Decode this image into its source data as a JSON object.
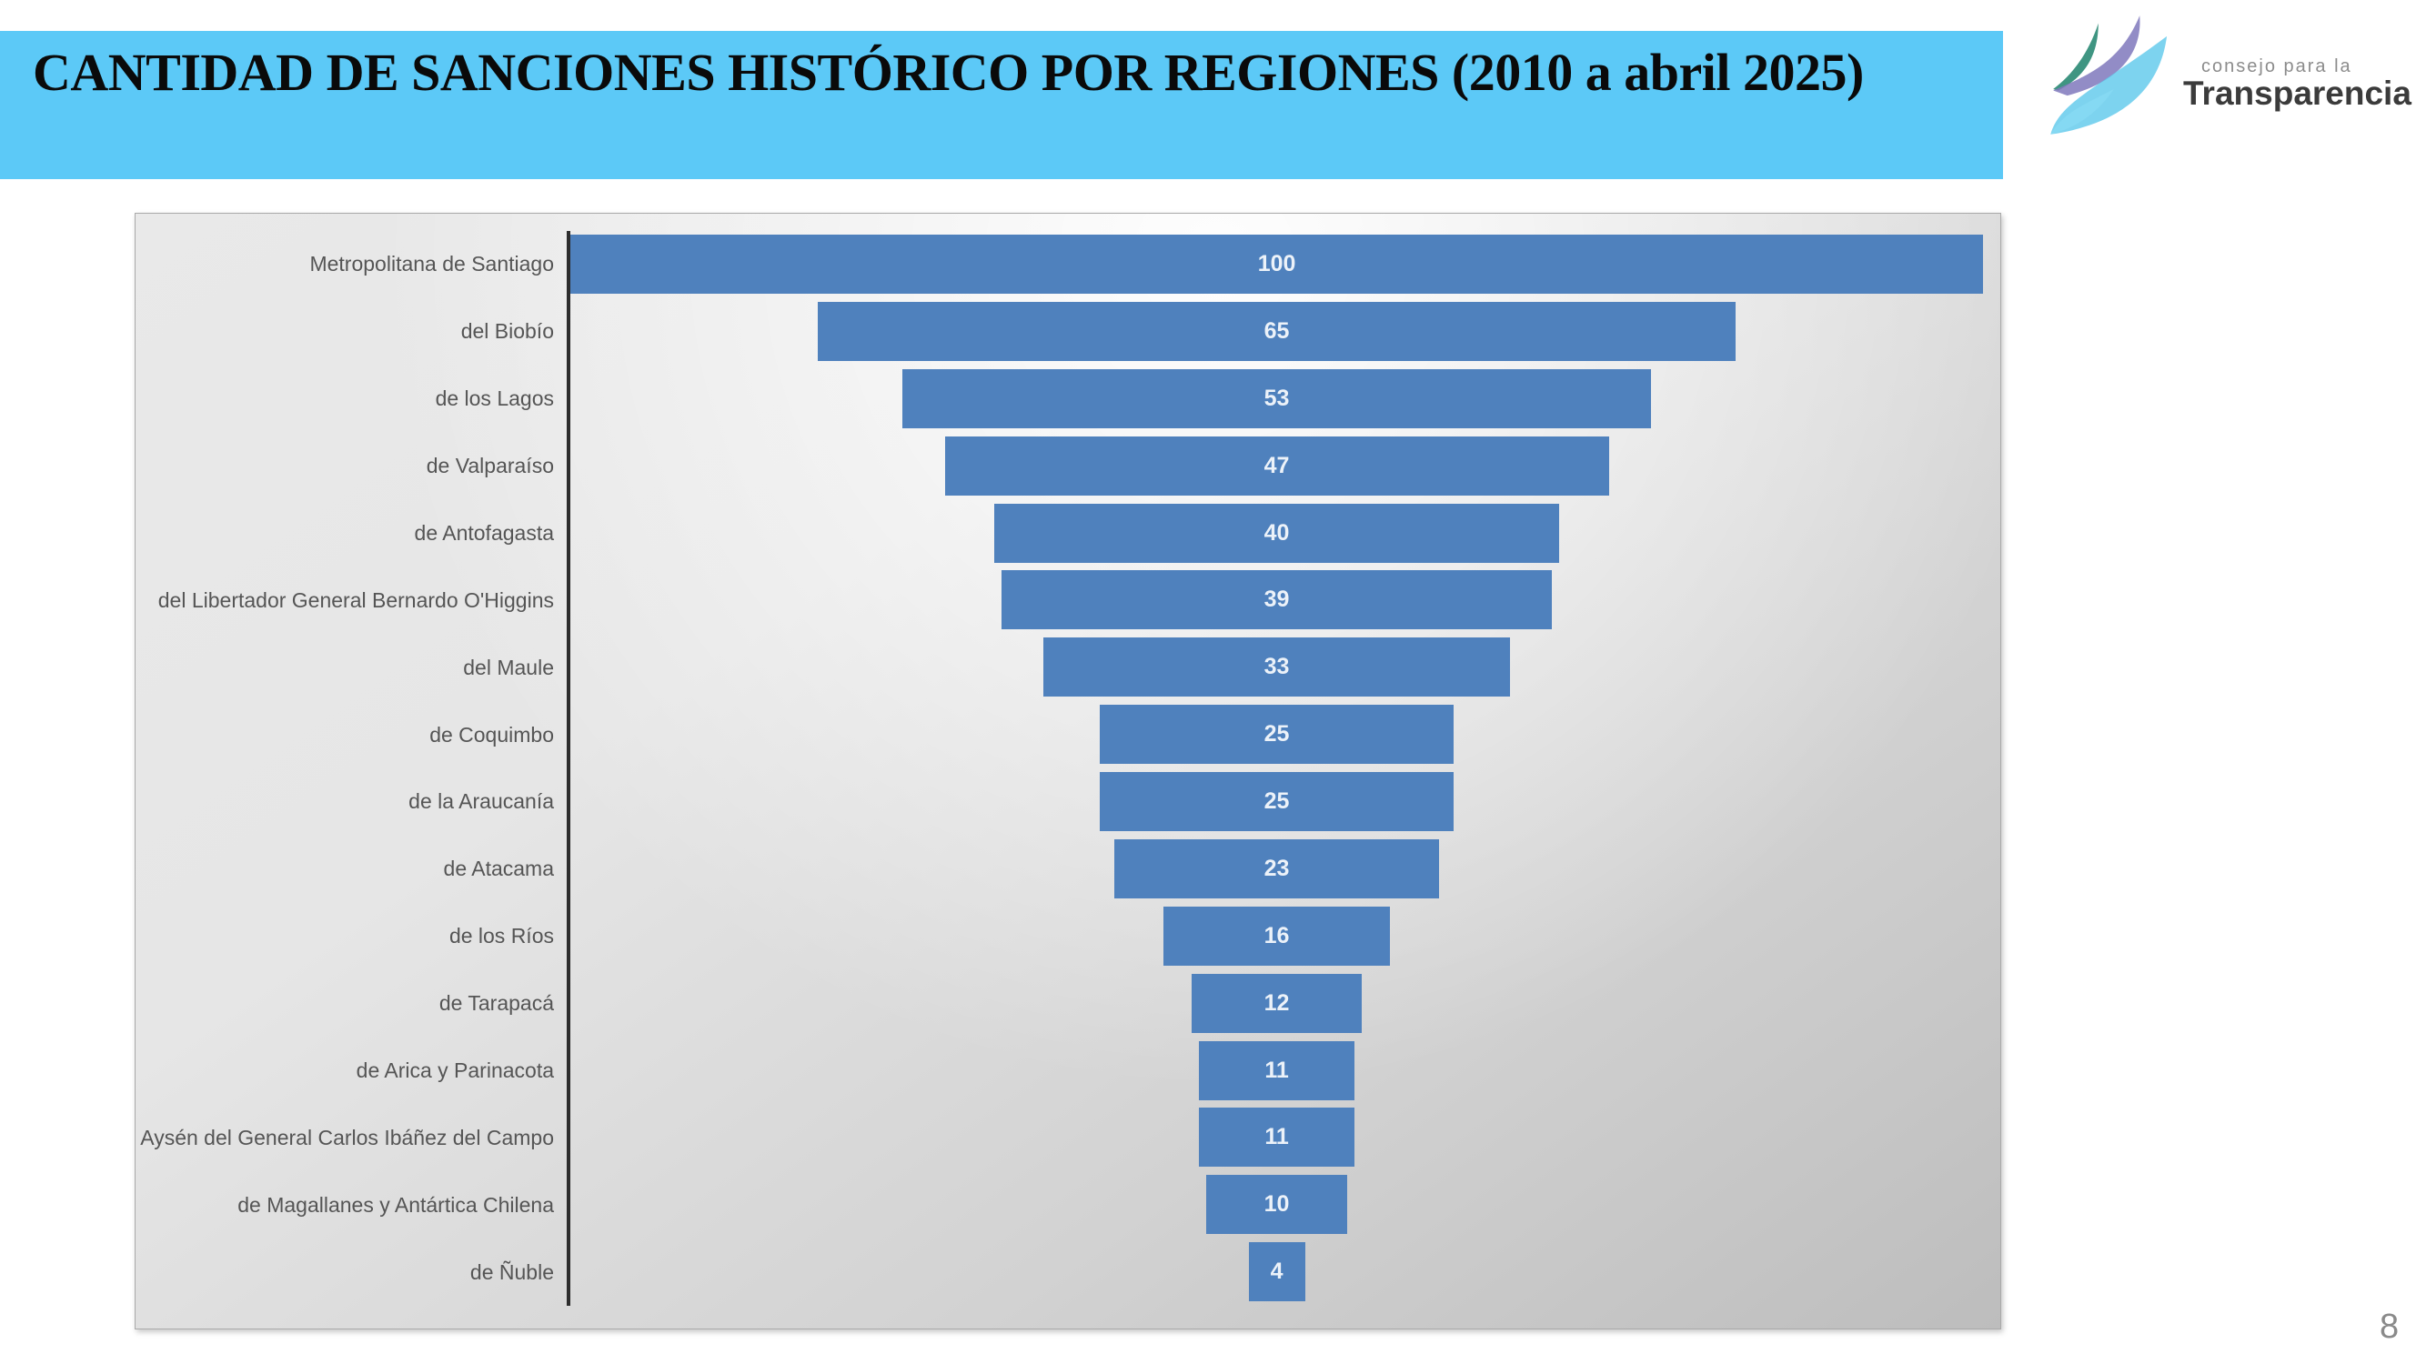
{
  "slide": {
    "title": "CANTIDAD DE SANCIONES HISTÓRICO POR REGIONES (2010 a abril 2025)",
    "page_number": "8"
  },
  "logo": {
    "icon": "transparency-sails-icon",
    "tagline": "consejo para la",
    "name": "Transparencia"
  },
  "colors": {
    "title_bar_background": "#5CC9F7",
    "title_text": "#0a0a0a",
    "bar_fill": "#4F81BD",
    "bar_value_text": "#ECF2F9",
    "category_label_text": "#555555",
    "axis_line": "#2d2d2d",
    "logo_green": "#2F8C77",
    "logo_purple": "#7F78BC",
    "logo_cyan": "#59C7EA",
    "page_number_text": "#8a8a8a"
  },
  "chart_data": {
    "type": "bar",
    "subtype": "horizontal-centered-funnel",
    "categories": [
      "Metropolitana de Santiago",
      "del Biobío",
      "de los Lagos",
      "de Valparaíso",
      "de Antofagasta",
      "del Libertador General Bernardo O'Higgins",
      "del Maule",
      "de Coquimbo",
      "de la Araucanía",
      "de Atacama",
      "de los Ríos",
      "de Tarapacá",
      "de Arica y Parinacota",
      "Aysén del General Carlos Ibáñez del Campo",
      "de Magallanes y Antártica Chilena",
      "de Ñuble"
    ],
    "values": [
      100,
      65,
      53,
      47,
      40,
      39,
      33,
      25,
      25,
      23,
      16,
      12,
      11,
      11,
      10,
      4
    ],
    "title": "",
    "xlabel": "",
    "ylabel": "",
    "xlim": [
      0,
      100
    ],
    "grid": false,
    "legend": false,
    "value_labels": "centered-inside-bars",
    "bar_color": "#4F81BD"
  }
}
